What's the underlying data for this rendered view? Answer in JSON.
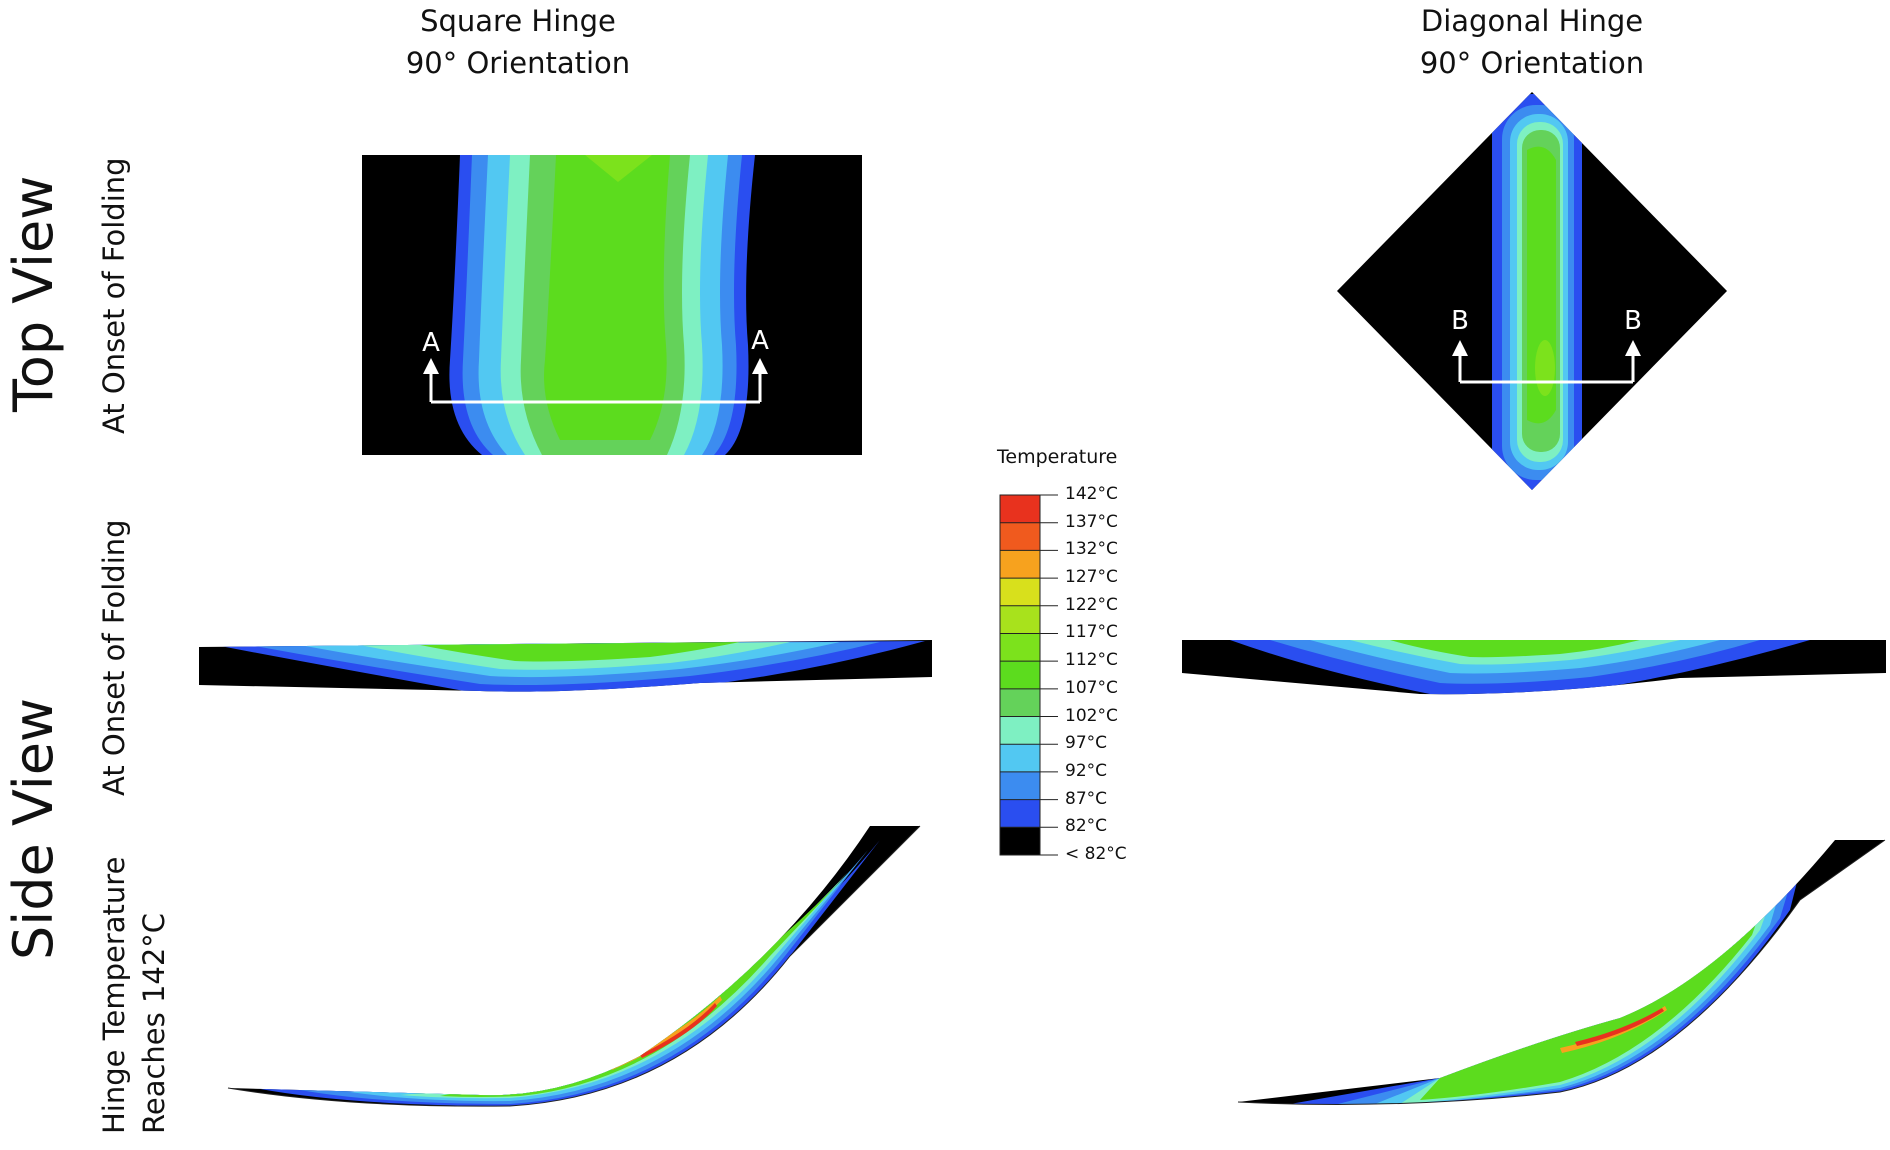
{
  "columns": {
    "left": {
      "line1": "Square Hinge",
      "line2": "90° Orientation"
    },
    "right": {
      "line1": "Diagonal Hinge",
      "line2": "90° Orientation"
    }
  },
  "rows": {
    "top_view": "Top View",
    "side_view": "Side View",
    "onset_top": "At Onset of Folding",
    "onset_side": "At Onset of Folding",
    "reaches_line1": "Hinge Temperature",
    "reaches_line2": "Reaches 142°C"
  },
  "section_markers": {
    "square": {
      "left": "A",
      "right": "A"
    },
    "diagonal": {
      "left": "B",
      "right": "B"
    }
  },
  "legend": {
    "title": "Temperature",
    "ticks": [
      "142°C",
      "137°C",
      "132°C",
      "127°C",
      "122°C",
      "117°C",
      "112°C",
      "107°C",
      "102°C",
      "97°C",
      "92°C",
      "87°C",
      "82°C",
      "< 82°C"
    ],
    "colors": [
      "#e8321e",
      "#f05a1e",
      "#f7a21e",
      "#d8e01c",
      "#a8e21c",
      "#7ce21c",
      "#5cdc1e",
      "#64d25a",
      "#7ef0c2",
      "#52c8f2",
      "#3c8cf0",
      "#2a4ef0",
      "#000000"
    ]
  },
  "palette": {
    "below": "#000000",
    "c82": "#2a4ef0",
    "c87": "#3c8cf0",
    "c92": "#52c8f2",
    "c97": "#7ef0c2",
    "c102": "#64d25a",
    "c107": "#5cdc1e",
    "c112": "#7ce21c",
    "c117": "#a8e21c",
    "hot": "#e8321e",
    "warm": "#f7a21e"
  }
}
